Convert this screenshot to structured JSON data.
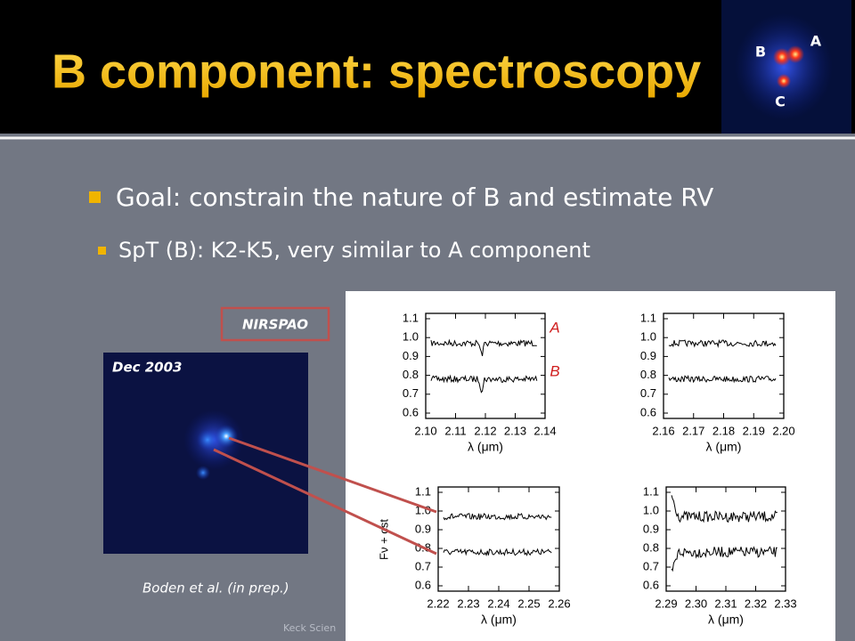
{
  "header": {
    "title": "B component: spectroscopy",
    "thumbnail_labels": [
      "A",
      "B",
      "C"
    ]
  },
  "bullets": [
    {
      "text": "Goal: constrain the nature of B and estimate RV",
      "sub": [
        "SpT (B): K2-K5, very similar to A component"
      ]
    }
  ],
  "figure": {
    "instrument": "NIRSPAO",
    "image_date": "Dec 2003",
    "citation": "Boden et al. (in prep.)",
    "y_label": "Fν + cst",
    "panels": [
      {
        "x_ticks": [
          "2.10",
          "2.11",
          "2.12",
          "2.13",
          "2.14"
        ],
        "y_ticks": [
          "1.1",
          "1.0",
          "0.9",
          "0.8",
          "0.7",
          "0.6"
        ],
        "x_label": "λ (μm)",
        "trace_labels": [
          "A",
          "B"
        ]
      },
      {
        "x_ticks": [
          "2.16",
          "2.17",
          "2.18",
          "2.19",
          "2.20"
        ],
        "y_ticks": [
          "1.1",
          "1.0",
          "0.9",
          "0.8",
          "0.7",
          "0.6"
        ],
        "x_label": "λ (μm)"
      },
      {
        "x_ticks": [
          "2.22",
          "2.23",
          "2.24",
          "2.25",
          "2.26"
        ],
        "y_ticks": [
          "1.1",
          "1.0",
          "0.9",
          "0.8",
          "0.7",
          "0.6"
        ],
        "x_label": "λ (μm)"
      },
      {
        "x_ticks": [
          "2.29",
          "2.30",
          "2.31",
          "2.32",
          "2.33"
        ],
        "y_ticks": [
          "1.1",
          "1.0",
          "0.9",
          "0.8",
          "0.7",
          "0.6"
        ],
        "x_label": "λ (μm)"
      }
    ]
  },
  "footer": "Keck Scien"
}
